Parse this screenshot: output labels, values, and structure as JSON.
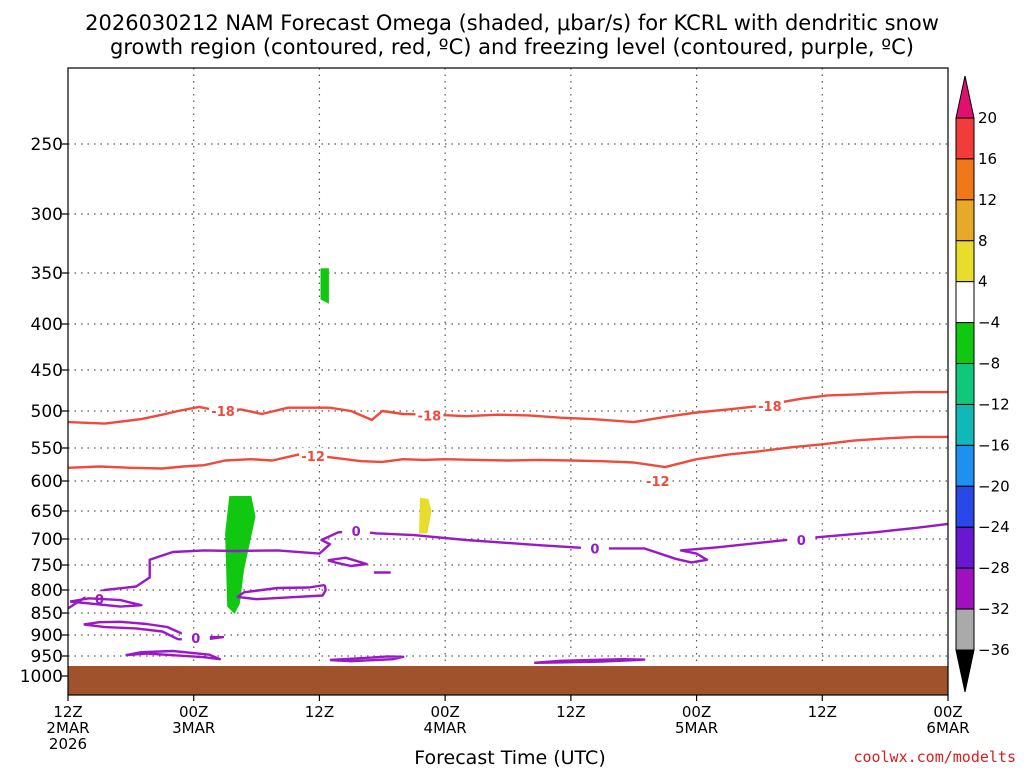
{
  "chart_data": {
    "type": "time-height contour",
    "title_line1": "2026030212 NAM Forecast Omega (shaded, μbar/s) for KCRL with dendritic snow",
    "title_line2": "growth region (contoured, red, ºC) and freezing level (contoured, purple, ºC)",
    "xlabel": "Forecast Time (UTC)",
    "ylabel": "Pressure (mb)",
    "credit": "coolwx.com/modelts",
    "x_ticks": [
      {
        "hour": 0,
        "labels": [
          "12Z",
          "2MAR",
          "2026"
        ]
      },
      {
        "hour": 12,
        "labels": [
          "00Z",
          "3MAR"
        ]
      },
      {
        "hour": 24,
        "labels": [
          "12Z"
        ]
      },
      {
        "hour": 36,
        "labels": [
          "00Z",
          "4MAR"
        ]
      },
      {
        "hour": 48,
        "labels": [
          "12Z"
        ]
      },
      {
        "hour": 60,
        "labels": [
          "00Z",
          "5MAR"
        ]
      },
      {
        "hour": 72,
        "labels": [
          "12Z"
        ]
      },
      {
        "hour": 84,
        "labels": [
          "00Z",
          "6MAR"
        ]
      }
    ],
    "x_range_hours": [
      0,
      84
    ],
    "y_ticks": [
      250,
      300,
      350,
      400,
      450,
      500,
      550,
      600,
      650,
      700,
      750,
      800,
      850,
      900,
      950,
      1000
    ],
    "y_range_mb": [
      200,
      1050
    ],
    "ground_top_mb": 975,
    "colors": {
      "dgz": "#f04a3a",
      "freezing": "#9a18c8",
      "ground": "#a0522d",
      "grid": "#555555"
    },
    "colorbar": {
      "ticks": [
        "20",
        "16",
        "12",
        "8",
        "4",
        "−4",
        "−8",
        "−12",
        "−16",
        "−20",
        "−24",
        "−28",
        "−32",
        "−36"
      ],
      "bins": [
        {
          "range": "16 to 20",
          "color": "#f23c3c"
        },
        {
          "range": "12 to 16",
          "color": "#f07818"
        },
        {
          "range": "8 to 12",
          "color": "#e8a828"
        },
        {
          "range": "4 to 8",
          "color": "#e8dc2c"
        },
        {
          "range": "−4 to 4",
          "color": "#ffffff"
        },
        {
          "range": "−8 to −4",
          "color": "#10c810"
        },
        {
          "range": "−12 to −8",
          "color": "#10c87c"
        },
        {
          "range": "−16 to −12",
          "color": "#10b8b8"
        },
        {
          "range": "−20 to −16",
          "color": "#1e90f0"
        },
        {
          "range": "−24 to −20",
          "color": "#2848e8"
        },
        {
          "range": "−28 to −24",
          "color": "#6818d0"
        },
        {
          "range": "−32 to −28",
          "color": "#a010c0"
        },
        {
          "range": "−36 to −32",
          "color": "#aaaaaa"
        }
      ],
      "top_arrow_color": "#e0106e",
      "bottom_arrow_color": "#000000"
    },
    "omega_patches": [
      {
        "name": "green patch 3MAR 12Z 350-380mb",
        "color": "#10c810",
        "points": [
          [
            24.1,
            346
          ],
          [
            24.9,
            346
          ],
          [
            24.9,
            380
          ],
          [
            24.1,
            376
          ]
        ]
      },
      {
        "name": "green patch 3MAR 03Z 620-850mb",
        "color": "#10c810",
        "points": [
          [
            15.4,
            625
          ],
          [
            17.5,
            625
          ],
          [
            17.9,
            660
          ],
          [
            16.8,
            760
          ],
          [
            16.4,
            830
          ],
          [
            15.9,
            852
          ],
          [
            15.2,
            836
          ],
          [
            15.1,
            760
          ],
          [
            15.0,
            690
          ]
        ]
      },
      {
        "name": "yellow patch 3MAR 22Z 630-690mb",
        "color": "#e8dc2c",
        "points": [
          [
            33.6,
            628
          ],
          [
            34.4,
            630
          ],
          [
            34.7,
            650
          ],
          [
            34.3,
            690
          ],
          [
            33.5,
            690
          ]
        ]
      }
    ],
    "series": [
      {
        "name": "-18",
        "kind": "dgz",
        "label_at": [
          [
            14.8,
            500
          ],
          [
            34.5,
            506
          ],
          [
            67,
            494
          ]
        ],
        "points": [
          [
            0,
            515
          ],
          [
            3.5,
            517
          ],
          [
            7,
            511
          ],
          [
            9,
            505
          ],
          [
            10.5,
            500
          ],
          [
            12.5,
            495
          ],
          [
            14.5,
            500
          ],
          [
            16.5,
            498
          ],
          [
            18.5,
            504
          ],
          [
            21,
            496
          ],
          [
            25,
            496
          ],
          [
            27,
            500
          ],
          [
            29,
            512
          ],
          [
            30,
            500
          ],
          [
            32,
            504
          ],
          [
            35,
            505
          ],
          [
            38,
            507
          ],
          [
            41,
            505
          ],
          [
            44,
            506
          ],
          [
            47,
            509
          ],
          [
            50,
            511
          ],
          [
            54,
            515
          ],
          [
            57,
            508
          ],
          [
            60,
            502
          ],
          [
            63,
            498
          ],
          [
            66,
            494
          ],
          [
            70,
            485
          ],
          [
            72.5,
            481
          ],
          [
            75,
            480
          ],
          [
            78,
            478
          ],
          [
            81,
            477
          ],
          [
            84,
            477
          ]
        ]
      },
      {
        "name": "-12",
        "kind": "dgz",
        "label_at": [
          [
            23.4,
            562
          ],
          [
            56.3,
            600
          ]
        ],
        "points": [
          [
            0,
            580
          ],
          [
            3,
            578
          ],
          [
            6,
            580
          ],
          [
            9,
            581
          ],
          [
            11,
            578
          ],
          [
            13,
            576
          ],
          [
            15,
            569
          ],
          [
            17.5,
            567
          ],
          [
            19.5,
            569
          ],
          [
            22,
            560
          ],
          [
            24,
            562
          ],
          [
            26,
            566
          ],
          [
            28,
            570
          ],
          [
            30,
            571
          ],
          [
            32,
            567
          ],
          [
            34,
            568
          ],
          [
            36,
            567
          ],
          [
            39,
            568
          ],
          [
            42,
            569
          ],
          [
            45,
            568
          ],
          [
            48,
            569
          ],
          [
            51,
            570
          ],
          [
            54,
            572
          ],
          [
            57,
            579
          ],
          [
            60,
            567
          ],
          [
            63,
            560
          ],
          [
            66,
            555
          ],
          [
            69,
            549
          ],
          [
            72,
            545
          ],
          [
            75,
            540
          ],
          [
            78,
            537
          ],
          [
            81,
            535
          ],
          [
            84,
            535
          ]
        ]
      },
      {
        "name": "0",
        "kind": "freezing",
        "label_at": [
          [
            27.5,
            686
          ],
          [
            50.3,
            718
          ],
          [
            70,
            702
          ],
          [
            3,
            820
          ]
        ],
        "points": [
          [
            0,
            840
          ],
          [
            1.5,
            818
          ],
          [
            3.5,
            800
          ],
          [
            6.5,
            793
          ],
          [
            7.8,
            775
          ],
          [
            7.8,
            740
          ],
          [
            10,
            725
          ],
          [
            13,
            722
          ],
          [
            16,
            723
          ],
          [
            20,
            722
          ],
          [
            24,
            728
          ],
          [
            25,
            710
          ],
          [
            24.2,
            702
          ],
          [
            25.8,
            688
          ],
          [
            27.5,
            686
          ],
          [
            29.5,
            690
          ],
          [
            33,
            693
          ],
          [
            38,
            702
          ],
          [
            45,
            712
          ],
          [
            50,
            718
          ],
          [
            55,
            718
          ],
          [
            58,
            738
          ],
          [
            59.5,
            745
          ],
          [
            61,
            740
          ],
          [
            60,
            728
          ],
          [
            58.5,
            722
          ],
          [
            62,
            716
          ],
          [
            68,
            703
          ],
          [
            72,
            696
          ],
          [
            77,
            688
          ],
          [
            81,
            680
          ],
          [
            84,
            673
          ]
        ]
      },
      {
        "name": "0",
        "kind": "freezing",
        "label_at": [],
        "points": [
          [
            24.5,
            790
          ],
          [
            23,
            795
          ],
          [
            20,
            796
          ],
          [
            16.8,
            805
          ],
          [
            16.2,
            815
          ],
          [
            18,
            820
          ],
          [
            21,
            816
          ],
          [
            24.3,
            812
          ],
          [
            24.6,
            800
          ],
          [
            24.5,
            790
          ]
        ]
      },
      {
        "name": "0",
        "kind": "freezing",
        "label_at": [],
        "points": [
          [
            0.2,
            825
          ],
          [
            2,
            818
          ],
          [
            5,
            822
          ],
          [
            7,
            833
          ],
          [
            5,
            836
          ],
          [
            0.2,
            825
          ]
        ]
      },
      {
        "name": "0",
        "kind": "freezing",
        "label_at": [
          [
            12.2,
            907
          ]
        ],
        "points": [
          [
            1.5,
            876
          ],
          [
            3,
            871
          ],
          [
            5,
            870
          ],
          [
            7.5,
            875
          ],
          [
            9.5,
            882
          ],
          [
            11,
            898
          ],
          [
            12.5,
            905
          ],
          [
            14.8,
            905
          ],
          [
            13,
            911
          ],
          [
            10.5,
            910
          ],
          [
            9,
            892
          ],
          [
            6.5,
            885
          ],
          [
            3.5,
            882
          ],
          [
            1.5,
            876
          ]
        ]
      },
      {
        "name": "0",
        "kind": "freezing",
        "label_at": [],
        "points": [
          [
            5.5,
            948
          ],
          [
            7,
            941
          ],
          [
            10,
            938
          ],
          [
            13.5,
            947
          ],
          [
            14.5,
            958
          ],
          [
            13,
            953
          ],
          [
            10,
            948
          ],
          [
            7.5,
            944
          ],
          [
            5.5,
            948
          ]
        ]
      },
      {
        "name": "0",
        "kind": "freezing",
        "label_at": [],
        "points": [
          [
            25,
            960
          ],
          [
            29,
            954
          ],
          [
            30.5,
            951
          ],
          [
            32,
            952
          ],
          [
            31,
            958
          ],
          [
            27,
            963
          ],
          [
            25,
            960
          ]
        ]
      },
      {
        "name": "0",
        "kind": "freezing",
        "label_at": [],
        "points": [
          [
            44.5,
            967
          ],
          [
            47,
            962
          ],
          [
            50,
            960
          ],
          [
            53,
            958
          ],
          [
            55,
            959
          ],
          [
            51,
            964
          ],
          [
            47,
            966
          ],
          [
            44.5,
            967
          ]
        ]
      },
      {
        "name": "0",
        "kind": "freezing",
        "label_at": [],
        "points": [
          [
            24.8,
            741
          ],
          [
            26.5,
            736
          ],
          [
            28.5,
            748
          ],
          [
            27,
            752
          ],
          [
            25.5,
            745
          ],
          [
            24.8,
            741
          ]
        ]
      },
      {
        "name": "0",
        "kind": "freezing",
        "label_at": [],
        "points": [
          [
            29.2,
            765
          ],
          [
            30.8,
            765
          ]
        ]
      }
    ]
  }
}
